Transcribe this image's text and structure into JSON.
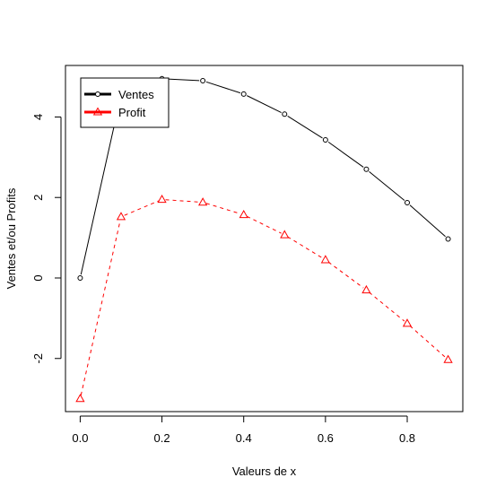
{
  "chart_data": {
    "type": "line",
    "title": "",
    "xlabel": "Valeurs de x",
    "ylabel": "Ventes et/ou Profits",
    "x": [
      0.0,
      0.1,
      0.2,
      0.3,
      0.4,
      0.5,
      0.6,
      0.7,
      0.8,
      0.9
    ],
    "xlim": [
      -0.036,
      0.936
    ],
    "ylim": [
      -3.32,
      5.28
    ],
    "xticks": [
      0.0,
      0.2,
      0.4,
      0.6,
      0.8
    ],
    "xtick_labels": [
      "0.0",
      "0.2",
      "0.4",
      "0.6",
      "0.8"
    ],
    "yticks": [
      -2,
      0,
      2,
      4
    ],
    "ytick_labels": [
      "-2",
      "0",
      "2",
      "4"
    ],
    "grid": false,
    "legend_position": "top-left",
    "series": [
      {
        "name": "Ventes",
        "values": [
          0.0,
          4.55,
          4.95,
          4.9,
          4.57,
          4.07,
          3.43,
          2.7,
          1.87,
          0.97
        ],
        "color": "#000000",
        "line_style": "solid",
        "marker": "circle"
      },
      {
        "name": "Profit",
        "values": [
          -3.0,
          1.52,
          1.95,
          1.88,
          1.57,
          1.07,
          0.45,
          -0.3,
          -1.13,
          -2.03
        ],
        "color": "#ff0000",
        "line_style": "dashed",
        "marker": "triangle"
      }
    ]
  }
}
